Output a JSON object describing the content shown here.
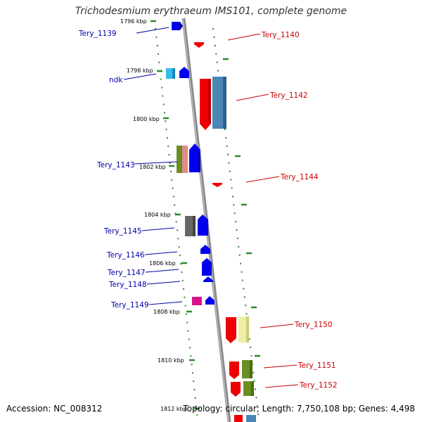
{
  "title": "Trichodesmium erythraeum IMS101, complete genome",
  "accession": "Accession: NC_008312",
  "topology": "Topology: circular; Length: 7,750,108 bp; Genes: 4,498",
  "colors": {
    "forward_label": "#0000aa",
    "reverse_label": "#cc0000",
    "backbone": "#8a8a8a",
    "tick": "#2a8a2a"
  },
  "kbp_labels": [
    "1796 kbp",
    "1798 kbp",
    "1800 kbp",
    "1802 kbp",
    "1804 kbp",
    "1806 kbp",
    "1808 kbp",
    "1810 kbp",
    "1812 kbp"
  ],
  "left_genes": [
    "Tery_1139",
    "ndk",
    "Tery_1143",
    "Tery_1145",
    "Tery_1146",
    "Tery_1147",
    "Tery_1148",
    "Tery_1149"
  ],
  "right_genes": [
    "Tery_1140",
    "Tery_1142",
    "Tery_1144",
    "Tery_1150",
    "Tery_1151",
    "Tery_1152"
  ]
}
